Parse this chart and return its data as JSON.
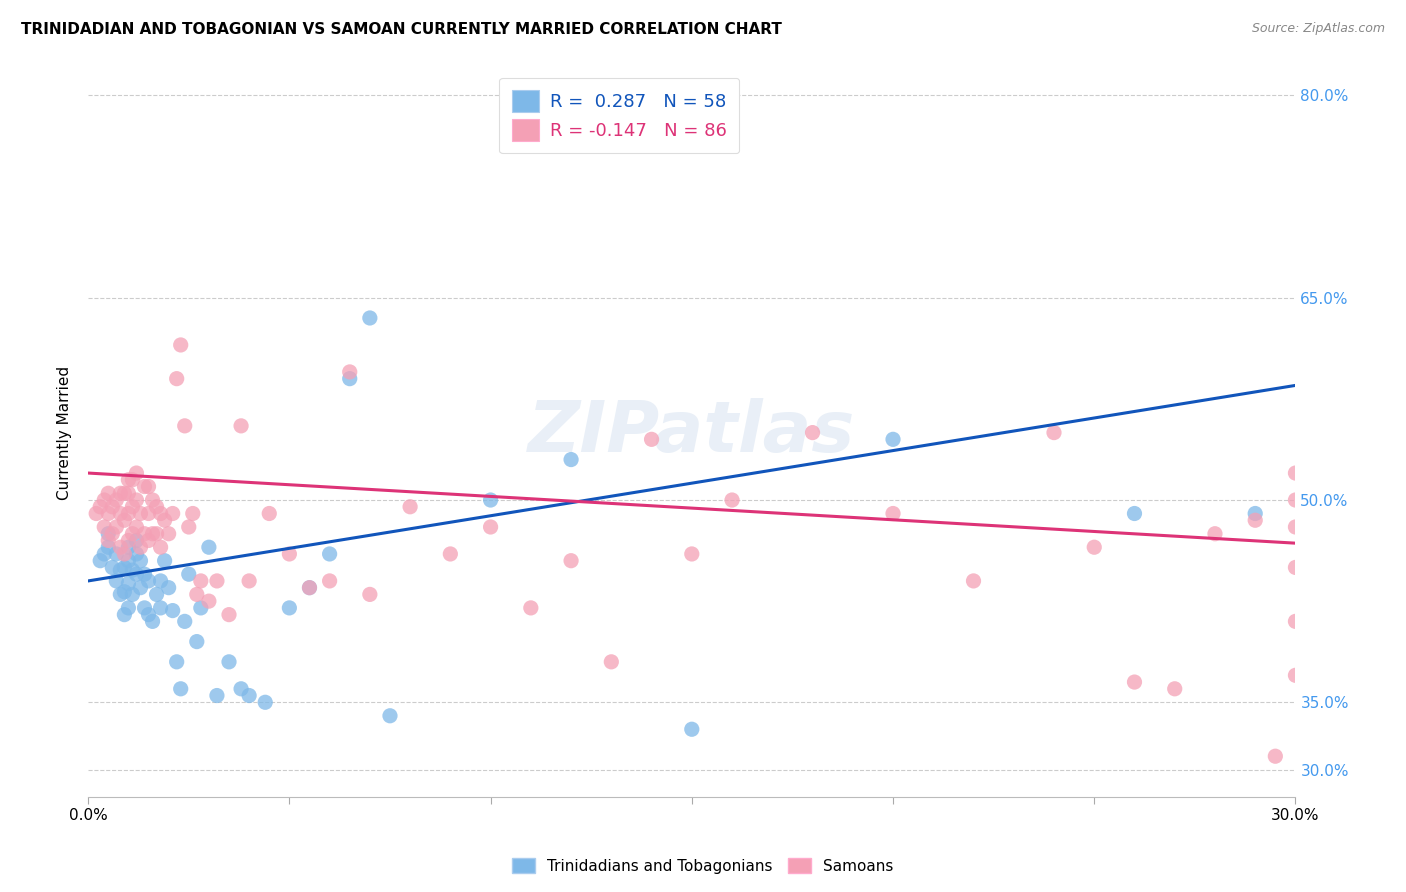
{
  "title": "TRINIDADIAN AND TOBAGONIAN VS SAMOAN CURRENTLY MARRIED CORRELATION CHART",
  "source": "Source: ZipAtlas.com",
  "ylabel": "Currently Married",
  "watermark": "ZIPatlas",
  "blue_R": 0.287,
  "blue_N": 58,
  "pink_R": -0.147,
  "pink_N": 86,
  "xlim": [
    0.0,
    0.3
  ],
  "ylim": [
    0.28,
    0.82
  ],
  "yticks": [
    0.3,
    0.35,
    0.5,
    0.65,
    0.8
  ],
  "ytick_labels": [
    "30.0%",
    "35.0%",
    "50.0%",
    "65.0%",
    "80.0%"
  ],
  "blue_color": "#7EB8E8",
  "pink_color": "#F4A0B5",
  "blue_line_color": "#1155BB",
  "pink_line_color": "#DD3377",
  "legend_blue_text_color": "#1155BB",
  "legend_pink_text_color": "#DD3377",
  "right_tick_color": "#4499EE",
  "background_color": "#FFFFFF",
  "grid_color": "#CCCCCC",
  "blue_line_x0": 0.0,
  "blue_line_y0": 0.44,
  "blue_line_x1": 0.3,
  "blue_line_y1": 0.585,
  "pink_line_x0": 0.0,
  "pink_line_y0": 0.52,
  "pink_line_x1": 0.3,
  "pink_line_y1": 0.468,
  "blue_scatter_x": [
    0.003,
    0.004,
    0.005,
    0.005,
    0.006,
    0.007,
    0.007,
    0.008,
    0.008,
    0.009,
    0.009,
    0.009,
    0.01,
    0.01,
    0.01,
    0.01,
    0.011,
    0.011,
    0.012,
    0.012,
    0.012,
    0.013,
    0.013,
    0.014,
    0.014,
    0.015,
    0.015,
    0.016,
    0.017,
    0.018,
    0.018,
    0.019,
    0.02,
    0.021,
    0.022,
    0.023,
    0.024,
    0.025,
    0.027,
    0.028,
    0.03,
    0.032,
    0.035,
    0.038,
    0.04,
    0.044,
    0.05,
    0.055,
    0.06,
    0.065,
    0.07,
    0.075,
    0.1,
    0.12,
    0.15,
    0.2,
    0.26,
    0.29
  ],
  "blue_scatter_y": [
    0.455,
    0.46,
    0.465,
    0.475,
    0.45,
    0.44,
    0.46,
    0.43,
    0.448,
    0.415,
    0.432,
    0.45,
    0.42,
    0.438,
    0.455,
    0.465,
    0.43,
    0.448,
    0.445,
    0.46,
    0.47,
    0.435,
    0.455,
    0.42,
    0.445,
    0.415,
    0.44,
    0.41,
    0.43,
    0.42,
    0.44,
    0.455,
    0.435,
    0.418,
    0.38,
    0.36,
    0.41,
    0.445,
    0.395,
    0.42,
    0.465,
    0.355,
    0.38,
    0.36,
    0.355,
    0.35,
    0.42,
    0.435,
    0.46,
    0.59,
    0.635,
    0.34,
    0.5,
    0.53,
    0.33,
    0.545,
    0.49,
    0.49
  ],
  "pink_scatter_x": [
    0.002,
    0.003,
    0.004,
    0.004,
    0.005,
    0.005,
    0.005,
    0.006,
    0.006,
    0.007,
    0.007,
    0.008,
    0.008,
    0.008,
    0.009,
    0.009,
    0.009,
    0.01,
    0.01,
    0.01,
    0.01,
    0.011,
    0.011,
    0.011,
    0.012,
    0.012,
    0.012,
    0.013,
    0.013,
    0.014,
    0.014,
    0.015,
    0.015,
    0.015,
    0.016,
    0.016,
    0.017,
    0.017,
    0.018,
    0.018,
    0.019,
    0.02,
    0.021,
    0.022,
    0.023,
    0.024,
    0.025,
    0.026,
    0.027,
    0.028,
    0.03,
    0.032,
    0.035,
    0.038,
    0.04,
    0.045,
    0.05,
    0.055,
    0.06,
    0.065,
    0.07,
    0.08,
    0.09,
    0.1,
    0.11,
    0.12,
    0.13,
    0.14,
    0.15,
    0.16,
    0.18,
    0.2,
    0.22,
    0.24,
    0.25,
    0.26,
    0.27,
    0.28,
    0.29,
    0.295,
    0.3,
    0.3,
    0.3,
    0.3,
    0.3,
    0.3
  ],
  "pink_scatter_y": [
    0.49,
    0.495,
    0.48,
    0.5,
    0.47,
    0.49,
    0.505,
    0.475,
    0.495,
    0.48,
    0.5,
    0.465,
    0.49,
    0.505,
    0.46,
    0.485,
    0.505,
    0.47,
    0.49,
    0.505,
    0.515,
    0.475,
    0.495,
    0.515,
    0.48,
    0.5,
    0.52,
    0.465,
    0.49,
    0.475,
    0.51,
    0.47,
    0.49,
    0.51,
    0.475,
    0.5,
    0.475,
    0.495,
    0.465,
    0.49,
    0.485,
    0.475,
    0.49,
    0.59,
    0.615,
    0.555,
    0.48,
    0.49,
    0.43,
    0.44,
    0.425,
    0.44,
    0.415,
    0.555,
    0.44,
    0.49,
    0.46,
    0.435,
    0.44,
    0.595,
    0.43,
    0.495,
    0.46,
    0.48,
    0.42,
    0.455,
    0.38,
    0.545,
    0.46,
    0.5,
    0.55,
    0.49,
    0.44,
    0.55,
    0.465,
    0.365,
    0.36,
    0.475,
    0.485,
    0.31,
    0.37,
    0.41,
    0.45,
    0.48,
    0.5,
    0.52
  ]
}
